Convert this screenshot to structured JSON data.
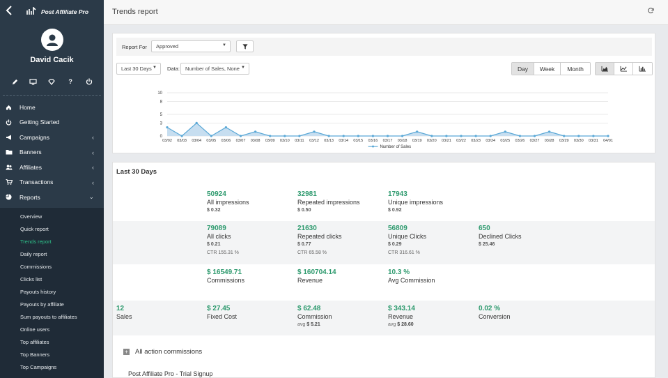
{
  "app": {
    "name": "Post Affiliate Pro"
  },
  "user": {
    "name": "David Cacik"
  },
  "nav": [
    {
      "label": "Home",
      "icon": "home-icon",
      "has_children": false
    },
    {
      "label": "Getting Started",
      "icon": "power-icon",
      "has_children": false
    },
    {
      "label": "Campaigns",
      "icon": "megaphone-icon",
      "has_children": true
    },
    {
      "label": "Banners",
      "icon": "folder-icon",
      "has_children": true
    },
    {
      "label": "Affiliates",
      "icon": "users-icon",
      "has_children": true
    },
    {
      "label": "Transactions",
      "icon": "cart-icon",
      "has_children": true
    },
    {
      "label": "Reports",
      "icon": "pie-chart-icon",
      "has_children": true,
      "expanded": true
    }
  ],
  "reports_sub": [
    "Overview",
    "Quick report",
    "Trends report",
    "Daily report",
    "Commissions",
    "Clicks list",
    "Payouts history",
    "Payouts by affiliate",
    "Sum payouts to affiliates",
    "Online users",
    "Top affiliates",
    "Top Banners",
    "Top Campaigns"
  ],
  "active_sub": "Trends report",
  "page": {
    "title": "Trends report"
  },
  "filters": {
    "report_for_label": "Report For",
    "report_for_value": "Approved",
    "range_value": "Last 30 Days",
    "data_label": "Data:",
    "data_value": "Number of Sales, None"
  },
  "period_buttons": [
    "Day",
    "Week",
    "Month"
  ],
  "period_selected": "Day",
  "chart_type_buttons": [
    "area-chart-icon",
    "line-chart-icon",
    "bar-chart-icon"
  ],
  "colors": {
    "accent": "#2e9a6e",
    "sidebar": "#2b3a48",
    "series": "#5aa8d6"
  },
  "chart_data": {
    "type": "area",
    "categories": [
      "03/02",
      "03/03",
      "03/04",
      "03/05",
      "03/06",
      "03/07",
      "03/08",
      "03/09",
      "03/10",
      "03/11",
      "03/12",
      "03/13",
      "03/14",
      "03/15",
      "03/16",
      "03/17",
      "03/18",
      "03/19",
      "03/20",
      "03/21",
      "03/22",
      "03/23",
      "03/24",
      "03/25",
      "03/26",
      "03/27",
      "03/28",
      "03/29",
      "03/30",
      "03/31",
      "04/01"
    ],
    "series": [
      {
        "name": "Number of Sales",
        "values": [
          2,
          0,
          3,
          0,
          2,
          0,
          1,
          0,
          0,
          0,
          1,
          0,
          0,
          0,
          0,
          0,
          0,
          1,
          0,
          0,
          0,
          0,
          0,
          1,
          0,
          0,
          1,
          0,
          0,
          0,
          0
        ]
      }
    ],
    "yticks": [
      "0",
      "3",
      "5",
      "8",
      "10"
    ],
    "ylim": [
      0,
      10
    ],
    "legend": "bottom",
    "grid": true
  },
  "summary": {
    "title": "Last 30 Days",
    "rows": [
      [
        {
          "value": "50924",
          "label": "All impressions",
          "sub": "$ 0.32"
        },
        {
          "value": "32981",
          "label": "Repeated impressions",
          "sub": "$ 0.50"
        },
        {
          "value": "17943",
          "label": "Unique impressions",
          "sub": "$ 0.92"
        }
      ],
      [
        {
          "value": "79089",
          "label": "All clicks",
          "sub": "$ 0.21",
          "sub2": "CTR 155.31 %"
        },
        {
          "value": "21630",
          "label": "Repeated clicks",
          "sub": "$ 0.77",
          "sub2": "CTR 65.58 %"
        },
        {
          "value": "56809",
          "label": "Unique Clicks",
          "sub": "$ 0.29",
          "sub2": "CTR 316.61 %"
        },
        {
          "value": "650",
          "label": "Declined Clicks",
          "sub": "$ 25.46"
        }
      ],
      [
        {
          "value": "$ 16549.71",
          "label": "Commissions"
        },
        {
          "value": "$ 160704.14",
          "label": "Revenue"
        },
        {
          "value": "10.3 %",
          "label": "Avg Commission"
        }
      ],
      [
        {
          "value": "12",
          "label": "Sales"
        },
        {
          "value": "$ 27.45",
          "label": "Fixed Cost"
        },
        {
          "value": "$ 62.48",
          "label": "Commission",
          "avg_label": "avg",
          "avg": "$ 5.21"
        },
        {
          "value": "$ 343.14",
          "label": "Revenue",
          "avg_label": "avg",
          "avg": "$ 28.60"
        },
        {
          "value": "0.02 %",
          "label": "Conversion"
        }
      ]
    ]
  },
  "sections": {
    "all_action_commissions": "All action commissions",
    "trial_signup": "Post Affiliate Pro - Trial Signup"
  }
}
